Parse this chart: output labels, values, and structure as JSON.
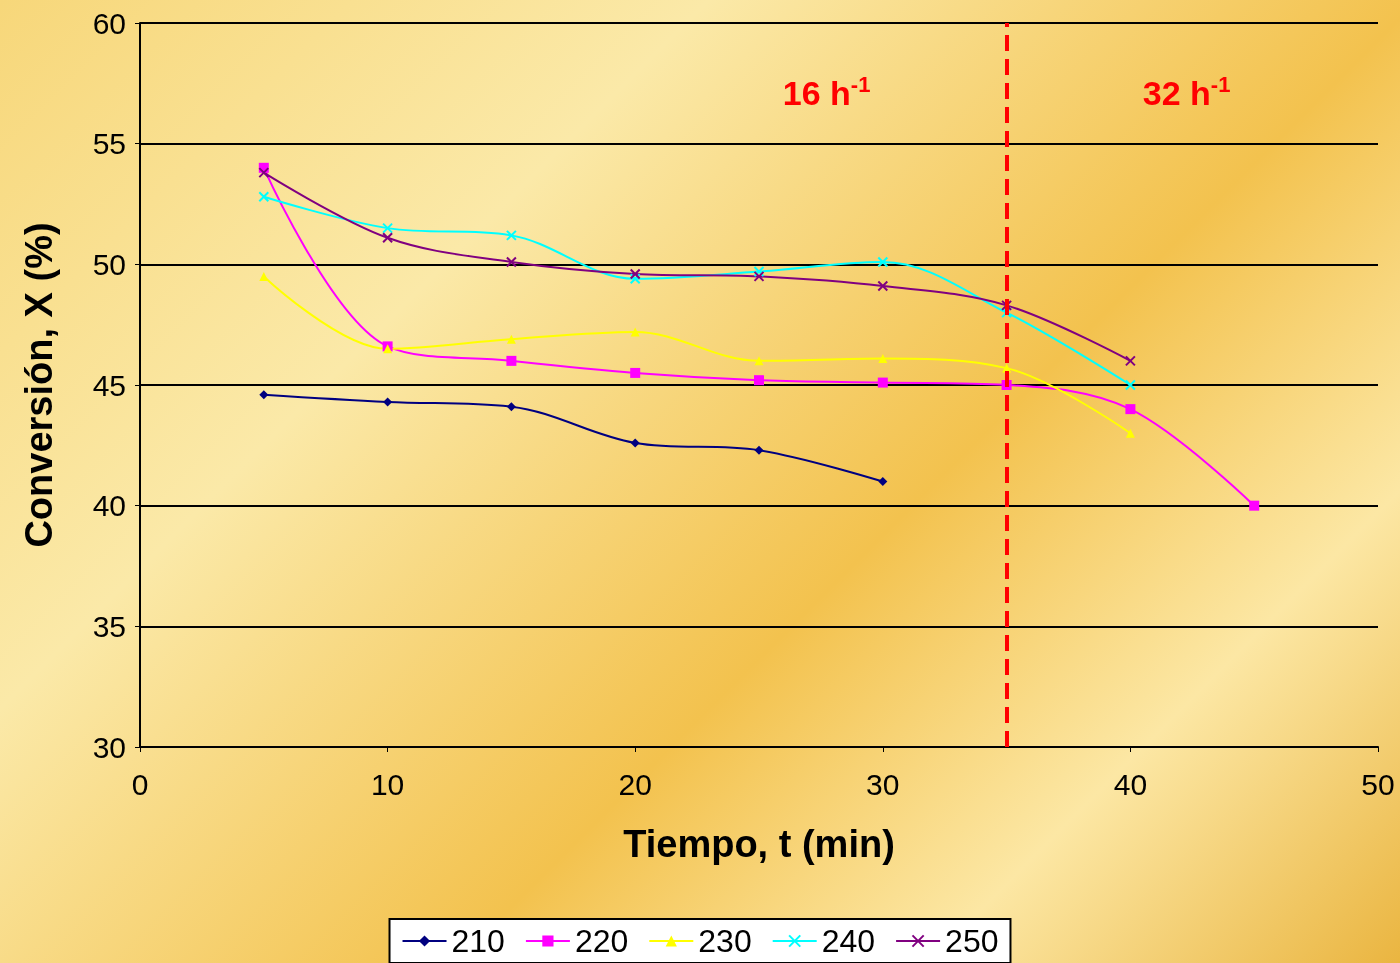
{
  "chart_data": {
    "type": "line",
    "xlabel": "Tiempo, t (min)",
    "ylabel": "Conversión, X (%)",
    "xlim": [
      0,
      50
    ],
    "xticks": [
      0,
      10,
      20,
      30,
      40,
      50
    ],
    "ylim": [
      30,
      60
    ],
    "yticks": [
      30,
      35,
      40,
      45,
      50,
      55,
      60
    ],
    "grid": "y",
    "legend": "bottom",
    "series": [
      {
        "name": "210",
        "color": "#000080",
        "marker": "diamond",
        "x": [
          5,
          10,
          15,
          20,
          25,
          30
        ],
        "values": [
          44.6,
          44.3,
          44.1,
          42.6,
          42.3,
          41.0
        ]
      },
      {
        "name": "220",
        "color": "#ff00ff",
        "marker": "square",
        "x": [
          5,
          10,
          15,
          20,
          25,
          30,
          35,
          40,
          45
        ],
        "values": [
          54.0,
          46.6,
          46.0,
          45.5,
          45.2,
          45.1,
          45.0,
          44.0,
          40.0
        ]
      },
      {
        "name": "230",
        "color": "#ffff00",
        "marker": "triangle",
        "x": [
          5,
          10,
          15,
          20,
          25,
          30,
          35,
          40
        ],
        "values": [
          49.5,
          46.5,
          46.9,
          47.2,
          46.0,
          46.1,
          45.7,
          43.0
        ]
      },
      {
        "name": "240",
        "color": "#00ffff",
        "marker": "cross",
        "x": [
          5,
          10,
          15,
          20,
          25,
          30,
          35,
          40
        ],
        "values": [
          52.8,
          51.5,
          51.2,
          49.4,
          49.7,
          50.1,
          48.0,
          45.0
        ]
      },
      {
        "name": "250",
        "color": "#800080",
        "marker": "cross",
        "x": [
          5,
          10,
          15,
          20,
          25,
          30,
          35,
          40
        ],
        "values": [
          53.8,
          51.1,
          50.1,
          49.6,
          49.5,
          49.1,
          48.3,
          46.0
        ]
      }
    ],
    "ref_lines": [
      {
        "axis": "x",
        "value": 35,
        "color": "#ff0000",
        "line_style": "dashed"
      }
    ],
    "annotations": [
      "16 h$^{-1}$",
      "32 h$^{-1}$"
    ]
  }
}
